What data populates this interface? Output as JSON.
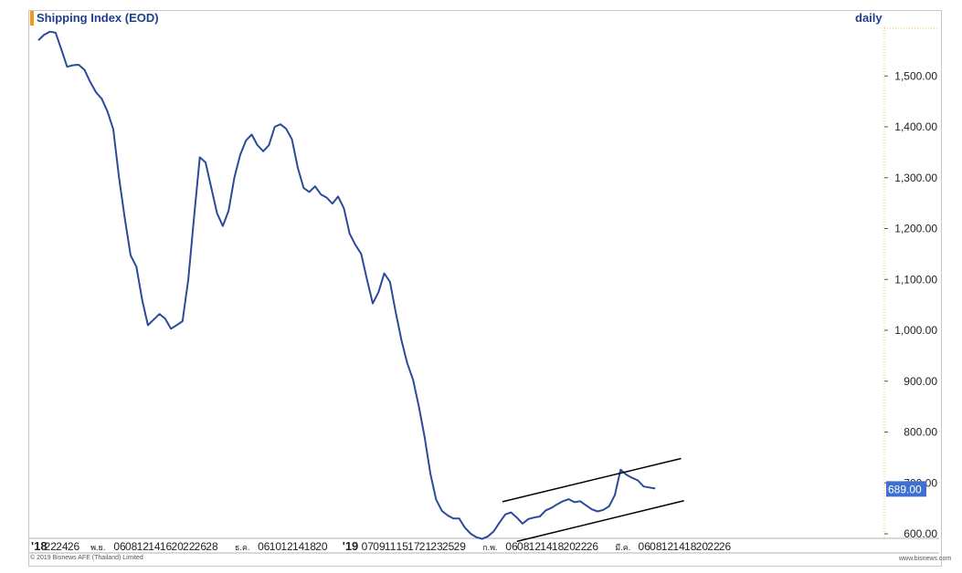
{
  "header": {
    "title": "Shipping Index (EOD)",
    "interval": "daily",
    "copyright": "© 2019 Bisnews AFE (Thailand) Limited",
    "site": "www.bisnews.com"
  },
  "colors": {
    "series": "#2b4a9a",
    "title": "#1f3f8f",
    "title_accent": "#f7941d",
    "axis_line": "#f0c060",
    "last_value_bg": "#3f6fd0",
    "trendline": "#000000"
  },
  "chart_data": {
    "type": "line",
    "title": "Shipping Index (EOD)",
    "interval": "daily",
    "ylim": [
      580,
      1595
    ],
    "y_ticks": [
      {
        "value": 600,
        "label": "600.00"
      },
      {
        "value": 700,
        "label": "700.00"
      },
      {
        "value": 800,
        "label": "800.00"
      },
      {
        "value": 900,
        "label": "900.00"
      },
      {
        "value": 1000,
        "label": "1,000.00"
      },
      {
        "value": 1100,
        "label": "1,100.00"
      },
      {
        "value": 1200,
        "label": "1,200.00"
      },
      {
        "value": 1300,
        "label": "1,300.00"
      },
      {
        "value": 1400,
        "label": "1,400.00"
      },
      {
        "value": 1500,
        "label": "1,500.00"
      }
    ],
    "y_axis_side": "right",
    "grid": false,
    "last_value": 689,
    "last_value_label": "689.00",
    "xlim": [
      0,
      124
    ],
    "x_labels": [
      {
        "i": 0,
        "label": "'18",
        "style": "year"
      },
      {
        "i": 2,
        "label": "22"
      },
      {
        "i": 4,
        "label": "24"
      },
      {
        "i": 6,
        "label": "26"
      },
      {
        "i": 10,
        "label": "พ.ย.",
        "style": "small"
      },
      {
        "i": 14,
        "label": "06"
      },
      {
        "i": 16,
        "label": "08"
      },
      {
        "i": 18,
        "label": "12"
      },
      {
        "i": 20,
        "label": "14"
      },
      {
        "i": 22,
        "label": "16"
      },
      {
        "i": 24,
        "label": "20"
      },
      {
        "i": 26,
        "label": "22"
      },
      {
        "i": 28,
        "label": "26"
      },
      {
        "i": 30,
        "label": "28"
      },
      {
        "i": 35,
        "label": "ธ.ค.",
        "style": "small"
      },
      {
        "i": 39,
        "label": "06"
      },
      {
        "i": 41,
        "label": "10"
      },
      {
        "i": 43,
        "label": "12"
      },
      {
        "i": 45,
        "label": "14"
      },
      {
        "i": 47,
        "label": "18"
      },
      {
        "i": 49,
        "label": "20"
      },
      {
        "i": 54,
        "label": "'19",
        "style": "year"
      },
      {
        "i": 57,
        "label": "07"
      },
      {
        "i": 59,
        "label": "09"
      },
      {
        "i": 61,
        "label": "11"
      },
      {
        "i": 63,
        "label": "15"
      },
      {
        "i": 65,
        "label": "17"
      },
      {
        "i": 67,
        "label": "21"
      },
      {
        "i": 69,
        "label": "23"
      },
      {
        "i": 71,
        "label": "25"
      },
      {
        "i": 73,
        "label": "29"
      },
      {
        "i": 78,
        "label": "ก.พ.",
        "style": "small"
      },
      {
        "i": 82,
        "label": "06"
      },
      {
        "i": 84,
        "label": "08"
      },
      {
        "i": 86,
        "label": "12"
      },
      {
        "i": 88,
        "label": "14"
      },
      {
        "i": 90,
        "label": "18"
      },
      {
        "i": 92,
        "label": "20"
      },
      {
        "i": 94,
        "label": "22"
      },
      {
        "i": 96,
        "label": "26"
      },
      {
        "i": 101,
        "label": "มี.ค.",
        "style": "small"
      },
      {
        "i": 105,
        "label": "06"
      },
      {
        "i": 107,
        "label": "08"
      },
      {
        "i": 109,
        "label": "12"
      },
      {
        "i": 111,
        "label": "14"
      },
      {
        "i": 113,
        "label": "18"
      },
      {
        "i": 115,
        "label": "20"
      },
      {
        "i": 117,
        "label": "22"
      },
      {
        "i": 119,
        "label": "26"
      }
    ],
    "series": [
      {
        "values": [
          1570,
          1581,
          1587,
          1585,
          1552,
          1518,
          1521,
          1522,
          1512,
          1488,
          1468,
          1455,
          1430,
          1395,
          1300,
          1220,
          1147,
          1125,
          1060,
          1010,
          1021,
          1032,
          1023,
          1003,
          1010,
          1018,
          1100,
          1222,
          1340,
          1330,
          1280,
          1230,
          1205,
          1235,
          1300,
          1345,
          1373,
          1385,
          1364,
          1352,
          1364,
          1400,
          1405,
          1396,
          1375,
          1320,
          1280,
          1272,
          1283,
          1267,
          1261,
          1249,
          1263,
          1240,
          1190,
          1168,
          1150,
          1100,
          1053,
          1075,
          1112,
          1095,
          1035,
          980,
          935,
          903,
          850,
          790,
          718,
          667,
          645,
          636,
          630,
          630,
          612,
          600,
          593,
          590,
          595,
          605,
          622,
          638,
          642,
          632,
          620,
          629,
          632,
          634,
          646,
          651,
          658,
          664,
          668,
          662,
          664,
          656,
          648,
          644,
          647,
          654,
          676,
          726,
          716,
          710,
          705,
          693,
          691,
          689
        ]
      }
    ],
    "trendlines": [
      {
        "x1": 80.5,
        "y1": 663,
        "x2": 111.5,
        "y2": 748
      },
      {
        "x1": 83.0,
        "y1": 585,
        "x2": 112.0,
        "y2": 665
      }
    ]
  }
}
